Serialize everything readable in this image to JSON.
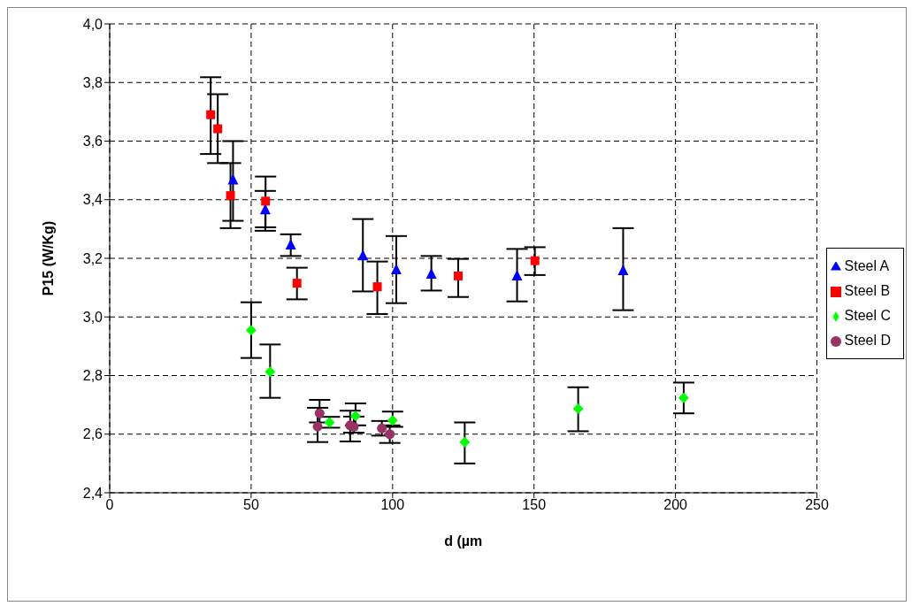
{
  "chart_data": {
    "type": "scatter",
    "xlabel": "d (µm",
    "ylabel": "P15 (W/Kg)",
    "xlim": [
      0,
      250
    ],
    "xticks": [
      0,
      50,
      100,
      150,
      200,
      250
    ],
    "ylim": [
      2.4,
      4.0
    ],
    "yticks": [
      {
        "value": 2.4,
        "label": "2,4"
      },
      {
        "value": 2.6,
        "label": "2,6"
      },
      {
        "value": 2.8,
        "label": "2,8"
      },
      {
        "value": 3.0,
        "label": "3,0"
      },
      {
        "value": 3.2,
        "label": "3,2"
      },
      {
        "value": 3.4,
        "label": "3,4"
      },
      {
        "value": 3.6,
        "label": "3,6"
      },
      {
        "value": 3.8,
        "label": "3,8"
      },
      {
        "value": 4.0,
        "label": "4,0"
      }
    ],
    "grid": true,
    "legend": "right",
    "series": [
      {
        "name": "Steel A",
        "color": "#0000ff",
        "marker": "triangle",
        "x": [
          43.6,
          55,
          64,
          89.5,
          101.3,
          113.7,
          144,
          181.5
        ],
        "values": [
          3.467,
          3.365,
          3.245,
          3.208,
          3.161,
          3.146,
          3.14,
          3.158
        ],
        "errors": [
          [
            3.328,
            3.6
          ],
          [
            3.294,
            3.43
          ],
          [
            3.208,
            3.282
          ],
          [
            3.087,
            3.334
          ],
          [
            3.047,
            3.276
          ],
          [
            3.09,
            3.208
          ],
          [
            3.053,
            3.232
          ],
          [
            3.023,
            3.303
          ]
        ]
      },
      {
        "name": "Steel B",
        "color": "#ff0000",
        "marker": "square",
        "x": [
          35.7,
          38.2,
          42.7,
          55.1,
          66.2,
          94.6,
          123.2,
          150.3
        ],
        "values": [
          3.69,
          3.642,
          3.414,
          3.395,
          3.115,
          3.103,
          3.14,
          3.192
        ],
        "errors": [
          [
            3.556,
            3.818
          ],
          [
            3.525,
            3.76
          ],
          [
            3.303,
            3.525
          ],
          [
            3.306,
            3.479
          ],
          [
            3.06,
            3.168
          ],
          [
            3.01,
            3.189
          ],
          [
            3.068,
            3.198
          ],
          [
            3.143,
            3.238
          ]
        ]
      },
      {
        "name": "Steel C",
        "color": "#00ff00",
        "marker": "diamond",
        "x": [
          50,
          56.7,
          77.7,
          86.9,
          100,
          125.5,
          165.6,
          202.9
        ],
        "values": [
          2.955,
          2.813,
          2.64,
          2.662,
          2.647,
          2.573,
          2.687,
          2.724
        ],
        "errors": [
          [
            2.86,
            3.05
          ],
          [
            2.724,
            2.906
          ],
          [
            2.622,
            2.659
          ],
          [
            2.63,
            2.705
          ],
          [
            2.625,
            2.677
          ],
          [
            2.5,
            2.64
          ],
          [
            2.61,
            2.76
          ],
          [
            2.671,
            2.776
          ]
        ]
      },
      {
        "name": "Steel D",
        "color": "#993366",
        "marker": "circle",
        "x": [
          74.2,
          73.5,
          85,
          86.3,
          96.2,
          99
        ],
        "values": [
          2.671,
          2.626,
          2.63,
          2.625,
          2.62,
          2.6
        ],
        "errors": [
          [
            2.64,
            2.717
          ],
          [
            2.573,
            2.69
          ],
          [
            2.575,
            2.68
          ],
          [
            2.605,
            2.66
          ],
          [
            2.595,
            2.645
          ],
          [
            2.57,
            2.63
          ]
        ]
      }
    ]
  }
}
